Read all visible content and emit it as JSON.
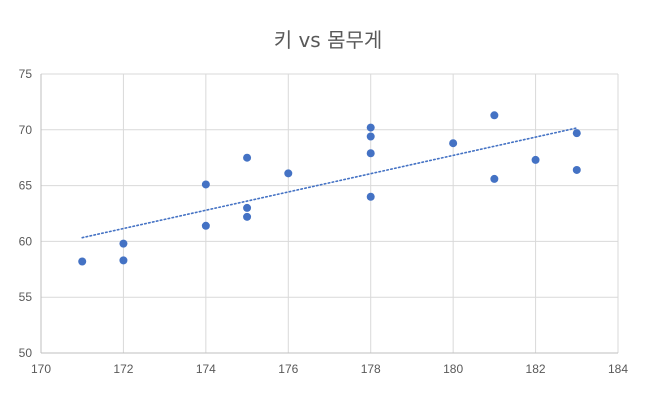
{
  "chart_data": {
    "type": "scatter",
    "title": "키 vs 몸무게",
    "xlabel": "",
    "ylabel": "",
    "xlim": [
      170,
      184
    ],
    "ylim": [
      50,
      75
    ],
    "x_ticks": [
      170,
      172,
      174,
      176,
      178,
      180,
      182,
      184
    ],
    "y_ticks": [
      50,
      55,
      60,
      65,
      70,
      75
    ],
    "grid": true,
    "legend": "none",
    "marker_color": "#4472C4",
    "trendline": {
      "type": "linear",
      "style": "dotted",
      "color": "#4472C4",
      "x_range": [
        171,
        183
      ]
    },
    "points": [
      {
        "x": 171,
        "y": 58.2
      },
      {
        "x": 172,
        "y": 59.8
      },
      {
        "x": 172,
        "y": 58.3
      },
      {
        "x": 174,
        "y": 65.1
      },
      {
        "x": 174,
        "y": 61.4
      },
      {
        "x": 175,
        "y": 67.5
      },
      {
        "x": 175,
        "y": 63.0
      },
      {
        "x": 175,
        "y": 62.2
      },
      {
        "x": 176,
        "y": 66.1
      },
      {
        "x": 178,
        "y": 70.2
      },
      {
        "x": 178,
        "y": 69.4
      },
      {
        "x": 178,
        "y": 67.9
      },
      {
        "x": 178,
        "y": 64.0
      },
      {
        "x": 180,
        "y": 68.8
      },
      {
        "x": 181,
        "y": 71.3
      },
      {
        "x": 181,
        "y": 65.6
      },
      {
        "x": 182,
        "y": 67.3
      },
      {
        "x": 183,
        "y": 69.7
      },
      {
        "x": 183,
        "y": 66.4
      }
    ]
  }
}
